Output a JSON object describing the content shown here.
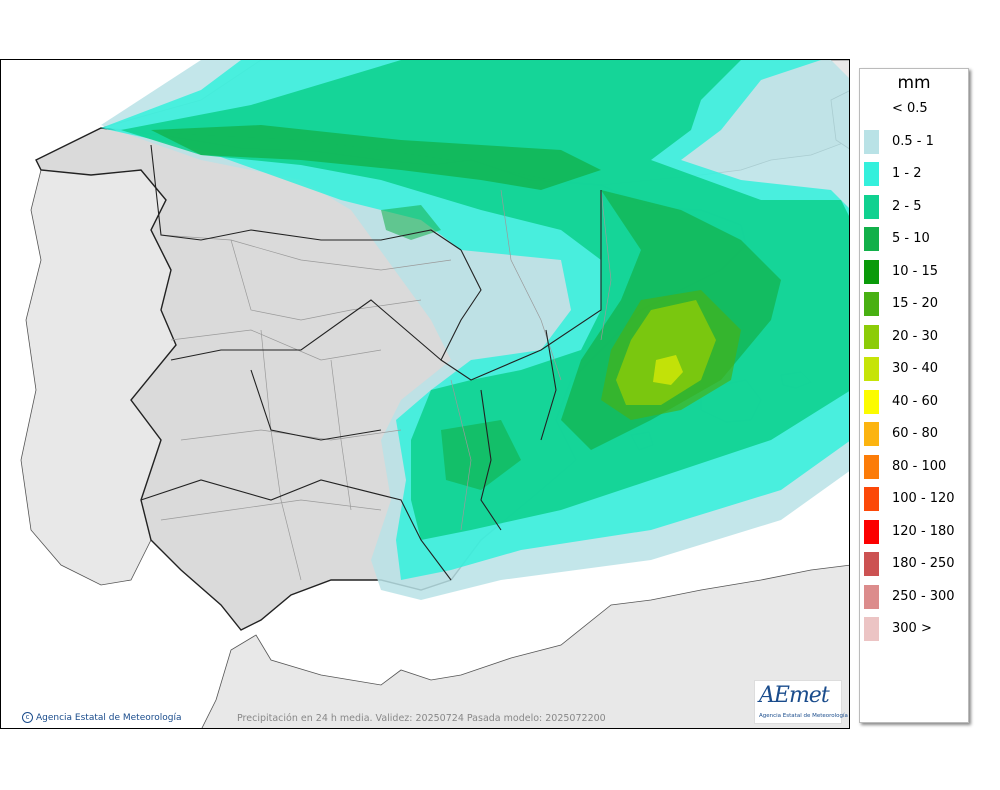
{
  "legend": {
    "unit": "mm",
    "items": [
      {
        "label": "< 0.5",
        "color": "#ffffff"
      },
      {
        "label": "0.5 - 1",
        "color": "#b9e2e6"
      },
      {
        "label": "1 - 2",
        "color": "#34f0dc"
      },
      {
        "label": "2 - 5",
        "color": "#10d190"
      },
      {
        "label": "5 - 10",
        "color": "#12b04a"
      },
      {
        "label": "10 - 15",
        "color": "#0a9a0a"
      },
      {
        "label": "15 - 20",
        "color": "#48b012"
      },
      {
        "label": "20 - 30",
        "color": "#8ccc08"
      },
      {
        "label": "30 - 40",
        "color": "#c6e408"
      },
      {
        "label": "40 - 60",
        "color": "#fcfc00"
      },
      {
        "label": "60 - 80",
        "color": "#fcb410"
      },
      {
        "label": "80 - 100",
        "color": "#fc7c08"
      },
      {
        "label": "100 - 120",
        "color": "#fc4808"
      },
      {
        "label": "120 - 180",
        "color": "#fc0000"
      },
      {
        "label": "180 - 250",
        "color": "#cc5252"
      },
      {
        "label": "250 - 300",
        "color": "#dc8c8c"
      },
      {
        "label": "300 >",
        "color": "#ecc4c4"
      }
    ]
  },
  "footer": {
    "copyright": "Agencia Estatal de Meteorología",
    "caption": "Precipitación en 24 h media. Validez: 20250724 Pasada modelo: 2025072200"
  },
  "logo": {
    "wordmark": "AEmet",
    "subtitle": "Agencia Estatal de Meteorología"
  },
  "colors": {
    "sea": "#ffffff",
    "land_foreign": "#e8e8e8",
    "land_spain": "#dadada",
    "border": "#222222",
    "province_border": "#9a9a9a"
  }
}
